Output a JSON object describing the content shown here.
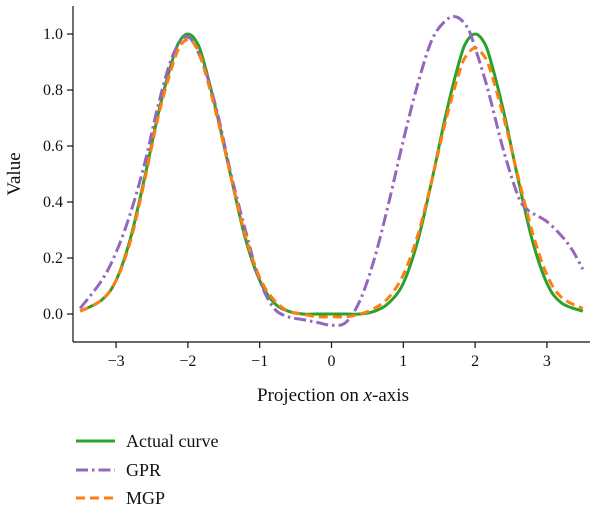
{
  "chart_data": {
    "type": "line",
    "xlabel_prefix": "Projection on ",
    "xlabel_var": "x",
    "xlabel_suffix": "-axis",
    "ylabel": "Value",
    "xlim": [
      -3.6,
      3.6
    ],
    "ylim": [
      -0.1,
      1.1
    ],
    "x_ticks": [
      -3,
      -2,
      -1,
      0,
      1,
      2,
      3
    ],
    "x_tick_labels": [
      "−3",
      "−2",
      "−1",
      "0",
      "1",
      "2",
      "3"
    ],
    "y_ticks": [
      0.0,
      0.2,
      0.4,
      0.6,
      0.8,
      1.0
    ],
    "y_tick_labels": [
      "0.0",
      "0.2",
      "0.4",
      "0.6",
      "0.8",
      "1.0"
    ],
    "grid": false,
    "legend_position": "bottom-left, below plot",
    "series": [
      {
        "name": "Actual curve",
        "color": "#2ca02c",
        "style": "solid",
        "x": [
          -3.5,
          -3.2,
          -3.0,
          -2.8,
          -2.6,
          -2.4,
          -2.2,
          -2.1,
          -2.0,
          -1.9,
          -1.8,
          -1.6,
          -1.4,
          -1.2,
          -1.0,
          -0.8,
          -0.6,
          -0.4,
          -0.2,
          0.0,
          0.2,
          0.4,
          0.6,
          0.8,
          1.0,
          1.2,
          1.4,
          1.6,
          1.8,
          1.9,
          2.0,
          2.1,
          2.2,
          2.4,
          2.6,
          2.8,
          3.0,
          3.2,
          3.5
        ],
        "y": [
          0.01,
          0.05,
          0.12,
          0.27,
          0.49,
          0.73,
          0.92,
          0.98,
          1.0,
          0.98,
          0.92,
          0.72,
          0.49,
          0.27,
          0.12,
          0.04,
          0.01,
          0.0,
          0.0,
          0.0,
          0.0,
          0.0,
          0.01,
          0.04,
          0.11,
          0.26,
          0.48,
          0.72,
          0.92,
          0.98,
          1.0,
          0.98,
          0.92,
          0.72,
          0.48,
          0.26,
          0.11,
          0.04,
          0.01
        ]
      },
      {
        "name": "GPR",
        "color": "#9467bd",
        "style": "dashdot",
        "x": [
          -3.5,
          -3.2,
          -3.0,
          -2.8,
          -2.6,
          -2.4,
          -2.2,
          -2.0,
          -1.8,
          -1.6,
          -1.4,
          -1.2,
          -1.0,
          -0.8,
          -0.6,
          -0.4,
          -0.2,
          0.0,
          0.2,
          0.4,
          0.6,
          0.8,
          1.0,
          1.2,
          1.4,
          1.6,
          1.75,
          1.9,
          2.0,
          2.1,
          2.2,
          2.4,
          2.6,
          2.7,
          2.8,
          3.0,
          3.2,
          3.35,
          3.5
        ],
        "y": [
          0.02,
          0.12,
          0.22,
          0.36,
          0.54,
          0.76,
          0.93,
          0.99,
          0.9,
          0.73,
          0.5,
          0.3,
          0.12,
          0.02,
          -0.01,
          -0.02,
          -0.03,
          -0.04,
          -0.03,
          0.05,
          0.2,
          0.4,
          0.62,
          0.82,
          0.98,
          1.05,
          1.06,
          1.02,
          0.95,
          0.87,
          0.78,
          0.58,
          0.42,
          0.38,
          0.36,
          0.33,
          0.28,
          0.23,
          0.16
        ]
      },
      {
        "name": "MGP",
        "color": "#ff7f0e",
        "style": "dashed",
        "x": [
          -3.5,
          -3.2,
          -3.0,
          -2.8,
          -2.6,
          -2.4,
          -2.2,
          -2.1,
          -2.0,
          -1.9,
          -1.8,
          -1.6,
          -1.4,
          -1.2,
          -1.0,
          -0.8,
          -0.6,
          -0.4,
          -0.2,
          0.0,
          0.2,
          0.4,
          0.6,
          0.8,
          1.0,
          1.2,
          1.4,
          1.6,
          1.8,
          1.9,
          2.0,
          2.1,
          2.2,
          2.4,
          2.6,
          2.8,
          3.0,
          3.2,
          3.5
        ],
        "y": [
          0.01,
          0.05,
          0.12,
          0.26,
          0.48,
          0.72,
          0.9,
          0.96,
          0.98,
          0.96,
          0.9,
          0.71,
          0.49,
          0.28,
          0.13,
          0.05,
          0.01,
          0.0,
          -0.01,
          -0.01,
          -0.01,
          0.0,
          0.02,
          0.06,
          0.14,
          0.28,
          0.48,
          0.7,
          0.88,
          0.93,
          0.95,
          0.93,
          0.88,
          0.7,
          0.49,
          0.29,
          0.14,
          0.06,
          0.02
        ]
      }
    ]
  }
}
